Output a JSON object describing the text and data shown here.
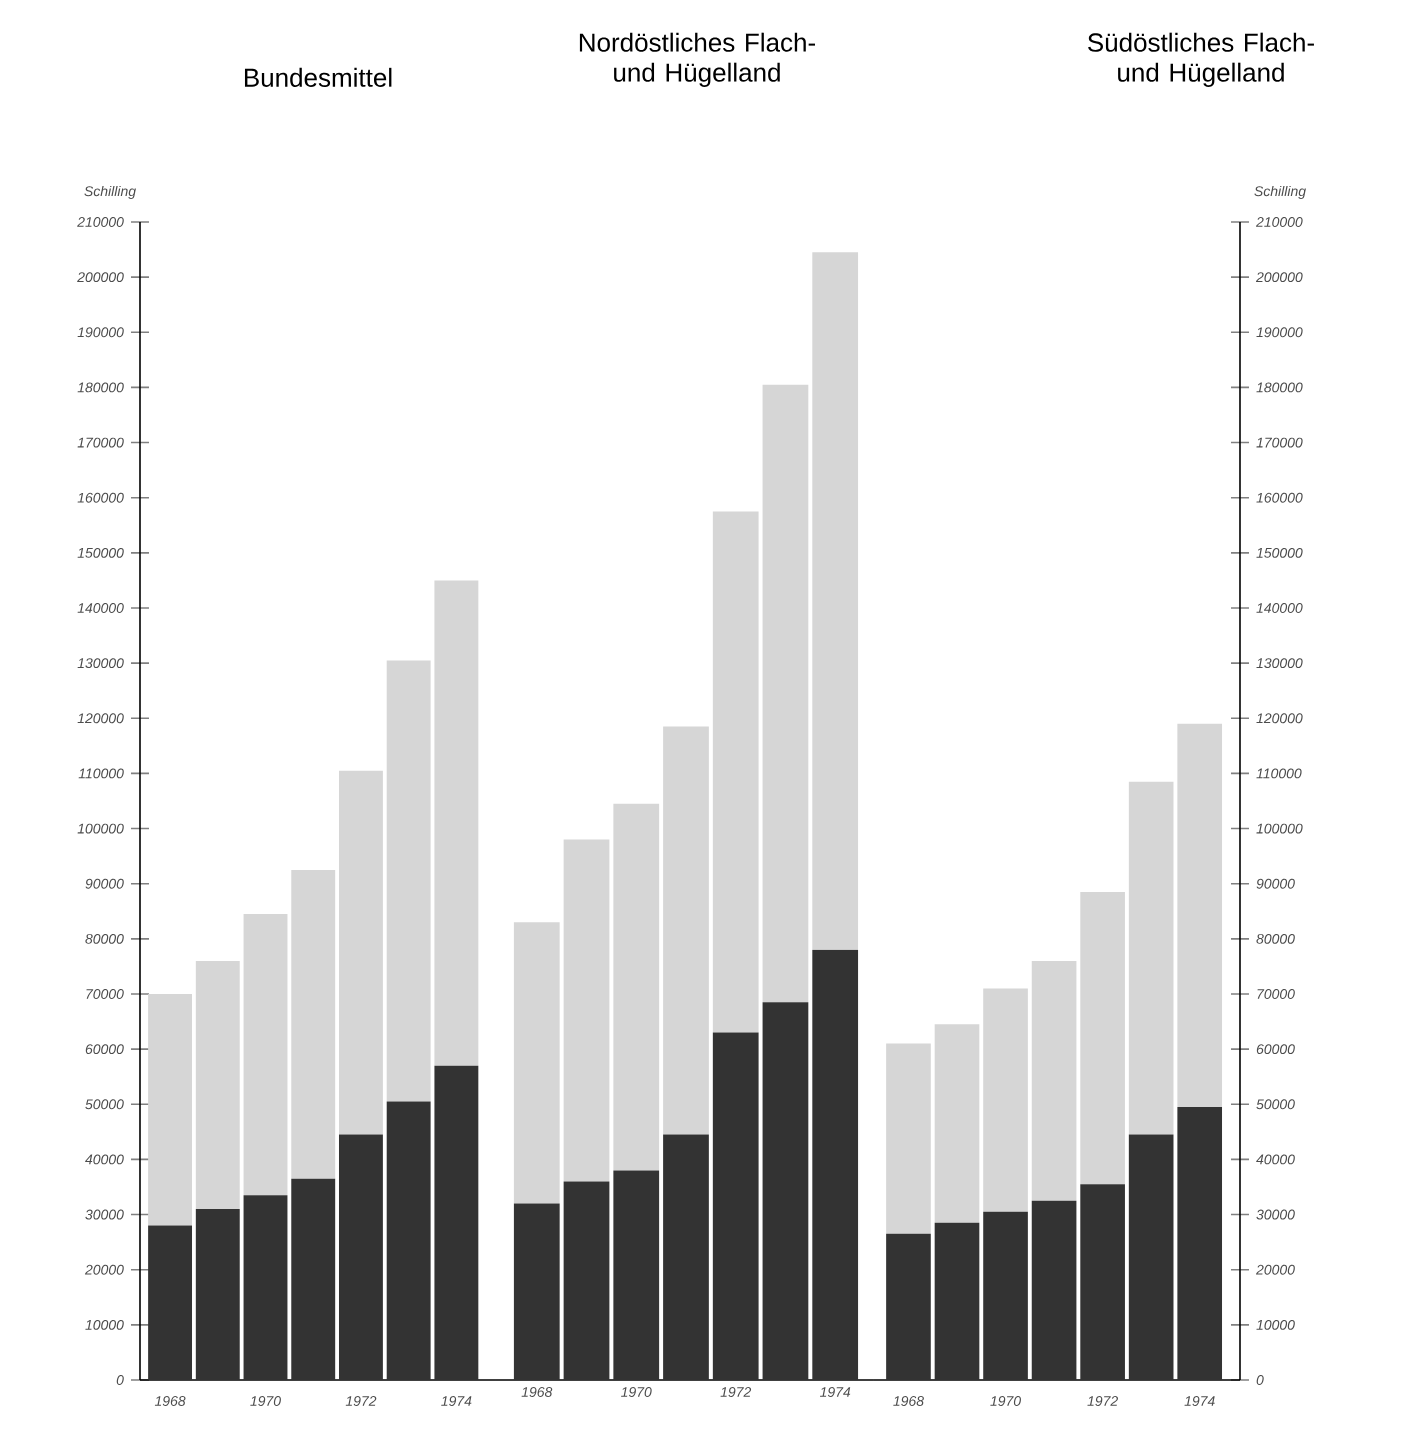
{
  "chart_data": [
    {
      "type": "bar",
      "title": "Bundesmittel",
      "ylabel": "Schilling",
      "stacked": true,
      "categories": [
        "1968",
        null,
        "1970",
        null,
        "1972",
        null,
        "1974"
      ],
      "series": [
        {
          "color": "#333333",
          "values": [
            28000,
            31000,
            33500,
            36500,
            44500,
            50500,
            57000
          ]
        },
        {
          "color": "#d6d6d6",
          "values": [
            42000,
            45000,
            51000,
            56000,
            66000,
            80000,
            88000
          ]
        }
      ],
      "ylim": [
        0,
        210000
      ],
      "yticks": [
        0,
        10000,
        20000,
        30000,
        40000,
        50000,
        60000,
        70000,
        80000,
        90000,
        100000,
        110000,
        120000,
        130000,
        140000,
        150000,
        160000,
        170000,
        180000,
        190000,
        200000,
        210000
      ]
    },
    {
      "type": "bar",
      "title": "Nordöstliches Flach- und Hügelland",
      "stacked": true,
      "categories": [
        "1968",
        null,
        "1970",
        null,
        "1972",
        null,
        "1974"
      ],
      "series": [
        {
          "color": "#333333",
          "values": [
            32000,
            36000,
            38000,
            44500,
            63000,
            68500,
            78000
          ]
        },
        {
          "color": "#d6d6d6",
          "values": [
            51000,
            62000,
            66500,
            74000,
            94500,
            112000,
            126500
          ]
        }
      ],
      "ylim": [
        0,
        210000
      ],
      "tick_labels": "x"
    },
    {
      "type": "bar",
      "title": "Südöstliches Flach- und Hügelland",
      "ylabel": "Schilling",
      "stacked": true,
      "categories": [
        "1968",
        null,
        "1970",
        null,
        "1972",
        null,
        "1974"
      ],
      "series": [
        {
          "color": "#333333",
          "values": [
            26500,
            28500,
            30500,
            32500,
            35500,
            44500,
            49500
          ]
        },
        {
          "color": "#d6d6d6",
          "values": [
            34500,
            36000,
            40500,
            43500,
            53000,
            64000,
            69500
          ]
        }
      ],
      "ylim": [
        0,
        210000
      ],
      "yticks": [
        0,
        10000,
        20000,
        30000,
        40000,
        50000,
        60000,
        70000,
        80000,
        90000,
        100000,
        110000,
        120000,
        130000,
        140000,
        150000,
        160000,
        170000,
        180000,
        190000,
        200000,
        210000
      ]
    }
  ]
}
